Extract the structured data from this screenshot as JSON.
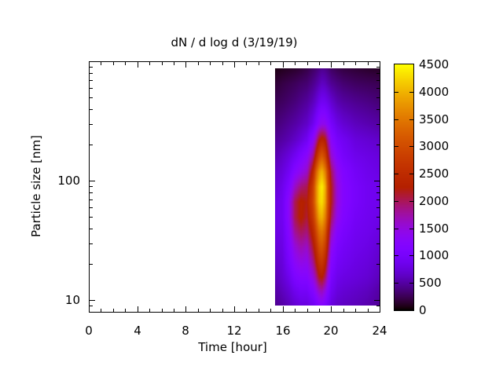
{
  "chart_data": {
    "type": "heatmap",
    "title": "dN / d log d (3/19/19)",
    "xlabel": "Time [hour]",
    "ylabel": "Particle size [nm]",
    "x_axis": {
      "range": [
        0,
        24
      ],
      "major_ticks": [
        0,
        4,
        8,
        12,
        16,
        20,
        24
      ],
      "major_tick_labels": [
        "0",
        "4",
        "8",
        "12",
        "16",
        "20",
        "24"
      ],
      "minor_tick_step": 1
    },
    "y_axis": {
      "scale": "log",
      "range": [
        8,
        1000
      ],
      "major_ticks": [
        10,
        100
      ],
      "major_tick_labels": [
        "10",
        "100"
      ],
      "minor_ticks": [
        9,
        20,
        30,
        40,
        50,
        60,
        70,
        80,
        90,
        200,
        300,
        400,
        500,
        600,
        700,
        800,
        900
      ]
    },
    "colorbar": {
      "min": 0,
      "max": 4500,
      "tick_values": [
        0,
        500,
        1000,
        1500,
        2000,
        2500,
        3000,
        3500,
        4000,
        4500
      ],
      "tick_labels": [
        "0",
        "500",
        "1000",
        "1500",
        "2000",
        "2500",
        "3000",
        "3500",
        "4000",
        "4500"
      ],
      "palette_name": "gnuplot-pm3d-rgbformulae-7-5-15",
      "palette_stops": {
        "0": "#000000",
        "500": "#5500A4",
        "1000": "#7803FB",
        "1500": "#9309DD",
        "2000": "#AA1657",
        "2500": "#BE2C00",
        "3000": "#D04C00",
        "3500": "#E17800",
        "4000": "#F0B300",
        "4500": "#FFFF00"
      }
    },
    "data_extent": {
      "time": [
        15.37,
        24
      ],
      "size_nm": [
        9.17,
        873
      ]
    },
    "grid": {
      "times": [
        15.4,
        16,
        16.5,
        17,
        17.5,
        18,
        18.5,
        18.75,
        19,
        19.25,
        19.5,
        19.75,
        20,
        20.5,
        21,
        22,
        23,
        24
      ],
      "sizes_nm": [
        880,
        650,
        450,
        300,
        220,
        160,
        120,
        90,
        67,
        50,
        38,
        28,
        21,
        16,
        12,
        9
      ],
      "values": [
        [
          50,
          80,
          100,
          120,
          150,
          200,
          280,
          320,
          380,
          420,
          400,
          350,
          280,
          220,
          180,
          150,
          120,
          100
        ],
        [
          150,
          200,
          230,
          260,
          300,
          330,
          420,
          480,
          560,
          620,
          600,
          520,
          450,
          380,
          330,
          280,
          260,
          240
        ],
        [
          250,
          280,
          320,
          360,
          420,
          480,
          600,
          700,
          850,
          920,
          900,
          820,
          700,
          560,
          500,
          440,
          400,
          350
        ],
        [
          350,
          400,
          450,
          500,
          570,
          650,
          850,
          1050,
          1300,
          1400,
          1380,
          1200,
          1000,
          800,
          700,
          600,
          550,
          500
        ],
        [
          450,
          500,
          560,
          640,
          750,
          900,
          1300,
          1700,
          2200,
          2400,
          2250,
          1750,
          1300,
          1000,
          900,
          750,
          700,
          650
        ],
        [
          550,
          650,
          750,
          900,
          1100,
          1300,
          1800,
          2400,
          3000,
          3200,
          2900,
          2200,
          1600,
          1200,
          1000,
          850,
          800,
          750
        ],
        [
          650,
          750,
          900,
          1200,
          1400,
          1600,
          2400,
          3200,
          3800,
          4000,
          3600,
          2800,
          2000,
          1400,
          1150,
          950,
          850,
          800
        ],
        [
          700,
          850,
          1100,
          1600,
          1900,
          2000,
          2800,
          3600,
          4200,
          4400,
          4000,
          3000,
          2200,
          1500,
          1200,
          1000,
          900,
          850
        ],
        [
          780,
          900,
          1300,
          2000,
          2300,
          2200,
          2900,
          3600,
          4200,
          4300,
          3900,
          3000,
          2200,
          1500,
          1200,
          1000,
          900,
          850
        ],
        [
          800,
          900,
          1300,
          2000,
          2300,
          2100,
          2700,
          3300,
          3900,
          4000,
          3600,
          2800,
          2000,
          1400,
          1150,
          950,
          880,
          820
        ],
        [
          780,
          850,
          1200,
          1800,
          2000,
          1900,
          2400,
          2900,
          3400,
          3500,
          3200,
          2400,
          1700,
          1200,
          1050,
          900,
          850,
          780
        ],
        [
          720,
          800,
          1100,
          1500,
          1700,
          1600,
          2100,
          2500,
          3000,
          3100,
          2800,
          2100,
          1400,
          1050,
          950,
          850,
          800,
          700
        ],
        [
          650,
          750,
          1000,
          1300,
          1450,
          1400,
          1800,
          2200,
          2600,
          2700,
          2400,
          1800,
          1200,
          950,
          880,
          800,
          750,
          650
        ],
        [
          580,
          700,
          850,
          1100,
          1200,
          1200,
          1500,
          1800,
          2200,
          2300,
          2000,
          1500,
          1050,
          850,
          800,
          750,
          700,
          600
        ],
        [
          500,
          600,
          700,
          850,
          950,
          950,
          1150,
          1350,
          1600,
          1650,
          1450,
          1150,
          900,
          750,
          700,
          650,
          600,
          500
        ],
        [
          430,
          500,
          580,
          680,
          750,
          750,
          850,
          950,
          1100,
          1150,
          1050,
          900,
          750,
          650,
          620,
          580,
          530,
          450
        ]
      ]
    }
  }
}
